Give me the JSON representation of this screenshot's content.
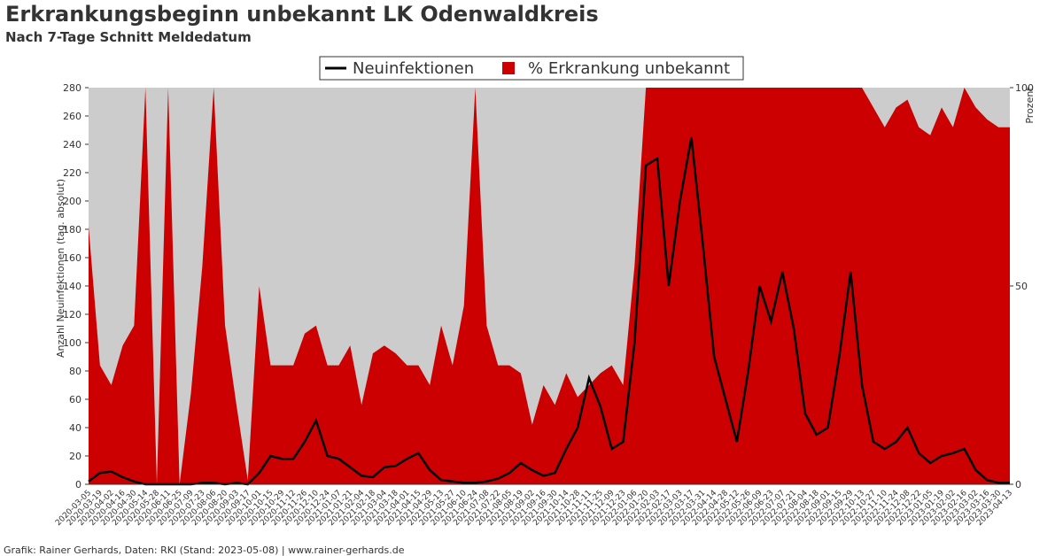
{
  "chart_data": {
    "type": "line",
    "title": "Erkrankungsbeginn unbekannt LK Odenwaldkreis",
    "subtitle": "Nach 7-Tage Schnitt Meldedatum",
    "footer": "Grafik: Rainer Gerhards, Daten: RKI (Stand: 2023-05-08) | www.rainer-gerhards.de",
    "ylabel": "Anzahl Neuinfektionen (tag. absolut)",
    "y2label": "Prozent",
    "categories": [
      "2020-03-05",
      "2020-03-19",
      "2020-04-02",
      "2020-04-16",
      "2020-04-30",
      "2020-05-14",
      "2020-05-28",
      "2020-06-11",
      "2020-06-25",
      "2020-07-09",
      "2020-07-23",
      "2020-08-06",
      "2020-08-20",
      "2020-09-03",
      "2020-09-17",
      "2020-10-01",
      "2020-10-15",
      "2020-10-29",
      "2020-11-12",
      "2020-11-26",
      "2020-12-10",
      "2020-12-24",
      "2021-01-07",
      "2021-01-21",
      "2021-02-04",
      "2021-02-18",
      "2021-03-04",
      "2021-03-18",
      "2021-04-01",
      "2021-04-15",
      "2021-04-29",
      "2021-05-13",
      "2021-05-27",
      "2021-06-10",
      "2021-06-24",
      "2021-07-08",
      "2021-07-22",
      "2021-08-05",
      "2021-08-19",
      "2021-09-02",
      "2021-09-16",
      "2021-09-30",
      "2021-10-14",
      "2021-10-28",
      "2021-11-11",
      "2021-11-25",
      "2021-12-09",
      "2021-12-23",
      "2022-01-06",
      "2022-01-20",
      "2022-02-03",
      "2022-02-17",
      "2022-03-03",
      "2022-03-17",
      "2022-03-31",
      "2022-04-14",
      "2022-04-28",
      "2022-05-12",
      "2022-05-26",
      "2022-06-09",
      "2022-06-23",
      "2022-07-07",
      "2022-07-21",
      "2022-08-04",
      "2022-08-18",
      "2022-09-01",
      "2022-09-15",
      "2022-09-29",
      "2022-10-13",
      "2022-10-27",
      "2022-11-10",
      "2022-11-24",
      "2022-12-08",
      "2022-12-22",
      "2023-01-05",
      "2023-01-19",
      "2023-02-02",
      "2023-02-16",
      "2023-03-02",
      "2023-03-16",
      "2023-03-30",
      "2023-04-13"
    ],
    "series": [
      {
        "name": "% Erkrankung unbekannt",
        "color": "#cc0000",
        "axis": "y2",
        "kind": "area",
        "values": [
          65,
          30,
          25,
          35,
          40,
          100,
          0,
          100,
          0,
          23,
          55,
          100,
          40,
          20,
          1,
          50,
          30,
          30,
          30,
          38,
          40,
          30,
          30,
          35,
          20,
          33,
          35,
          33,
          30,
          30,
          25,
          40,
          30,
          45,
          100,
          40,
          30,
          30,
          28,
          15,
          25,
          20,
          28,
          22,
          25,
          28,
          30,
          25,
          55,
          100,
          100,
          100,
          100,
          100,
          100,
          100,
          100,
          100,
          100,
          100,
          100,
          100,
          100,
          100,
          100,
          100,
          100,
          100,
          100,
          95,
          90,
          95,
          97,
          90,
          88,
          95,
          90,
          100,
          95,
          92,
          90,
          90
        ]
      },
      {
        "name": "Neuinfektionen",
        "color": "#000000",
        "axis": "y",
        "kind": "line",
        "values": [
          2,
          8,
          9,
          5,
          2,
          0,
          0,
          0,
          0,
          0,
          1,
          1,
          0,
          1,
          0,
          8,
          20,
          18,
          18,
          30,
          45,
          20,
          18,
          12,
          6,
          5,
          12,
          13,
          18,
          22,
          10,
          3,
          2,
          1,
          1,
          2,
          4,
          8,
          15,
          10,
          6,
          8,
          25,
          40,
          75,
          55,
          25,
          30,
          100,
          225,
          230,
          140,
          200,
          245,
          170,
          90,
          60,
          30,
          80,
          140,
          115,
          150,
          110,
          50,
          35,
          40,
          90,
          150,
          70,
          30,
          25,
          30,
          40,
          22,
          15,
          20,
          22,
          25,
          10,
          3,
          1,
          1
        ]
      }
    ],
    "ylim": [
      0,
      280
    ],
    "yticks": [
      0,
      20,
      40,
      60,
      80,
      100,
      120,
      140,
      160,
      180,
      200,
      220,
      240,
      260,
      280
    ],
    "y2lim": [
      0,
      100
    ],
    "y2ticks": [
      0,
      50,
      100
    ],
    "legend": "top",
    "background": "#cccccc"
  }
}
